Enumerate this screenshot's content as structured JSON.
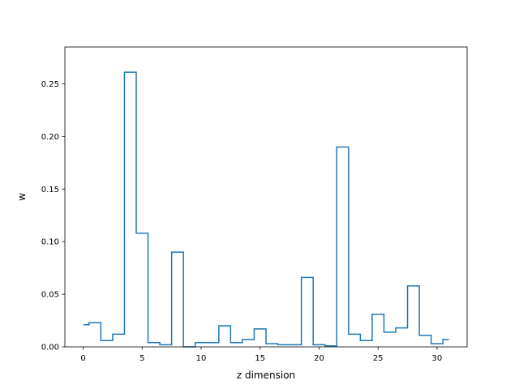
{
  "chart_data": {
    "type": "line",
    "drawstyle": "steps-mid",
    "title": "",
    "xlabel": "z dimension",
    "ylabel": "w",
    "xlim": [
      -1.55,
      32.55
    ],
    "ylim": [
      0,
      0.285
    ],
    "x_ticks": [
      0,
      5,
      10,
      15,
      20,
      25,
      30
    ],
    "x_tick_labels": [
      "0",
      "5",
      "10",
      "15",
      "20",
      "25",
      "30"
    ],
    "y_ticks": [
      0.0,
      0.05,
      0.1,
      0.15,
      0.2,
      0.25
    ],
    "y_tick_labels": [
      "0.00",
      "0.05",
      "0.10",
      "0.15",
      "0.20",
      "0.25"
    ],
    "grid": false,
    "legend": "none",
    "line_color": "#1f77b4",
    "x": [
      0,
      1,
      2,
      3,
      4,
      5,
      6,
      7,
      8,
      9,
      10,
      11,
      12,
      13,
      14,
      15,
      16,
      17,
      18,
      19,
      20,
      21,
      22,
      23,
      24,
      25,
      26,
      27,
      28,
      29,
      30,
      31
    ],
    "values": [
      0.021,
      0.023,
      0.006,
      0.012,
      0.261,
      0.108,
      0.004,
      0.002,
      0.09,
      0.0,
      0.004,
      0.004,
      0.02,
      0.004,
      0.007,
      0.017,
      0.003,
      0.002,
      0.002,
      0.066,
      0.002,
      0.001,
      0.19,
      0.012,
      0.006,
      0.031,
      0.014,
      0.018,
      0.058,
      0.011,
      0.003,
      0.007
    ]
  }
}
